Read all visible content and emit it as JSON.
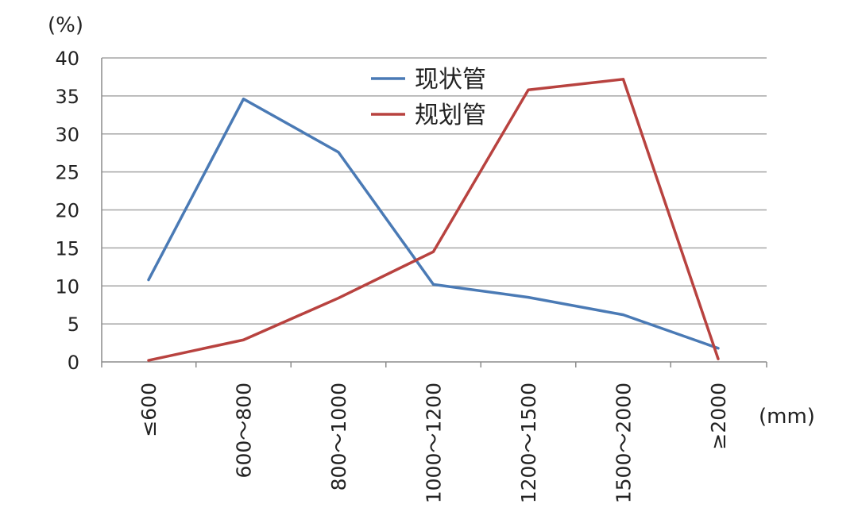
{
  "chart_data": {
    "type": "line",
    "y_unit": "(%)",
    "x_unit": "(mm)",
    "categories": [
      "≤600",
      "600～800",
      "800～1000",
      "1000～1200",
      "1200～1500",
      "1500～2000",
      "≥2000"
    ],
    "ylim": [
      0,
      40
    ],
    "y_ticks": [
      0,
      5,
      10,
      15,
      20,
      25,
      30,
      35,
      40
    ],
    "grid": true,
    "legend_position": "top-center",
    "series": [
      {
        "name": "现状管",
        "color": "#4a7ab5",
        "values": [
          10.8,
          34.6,
          27.6,
          10.2,
          8.5,
          6.2,
          1.8
        ]
      },
      {
        "name": "规划管",
        "color": "#b8423f",
        "values": [
          0.2,
          2.9,
          8.4,
          14.5,
          35.8,
          37.2,
          0.4
        ]
      }
    ]
  }
}
